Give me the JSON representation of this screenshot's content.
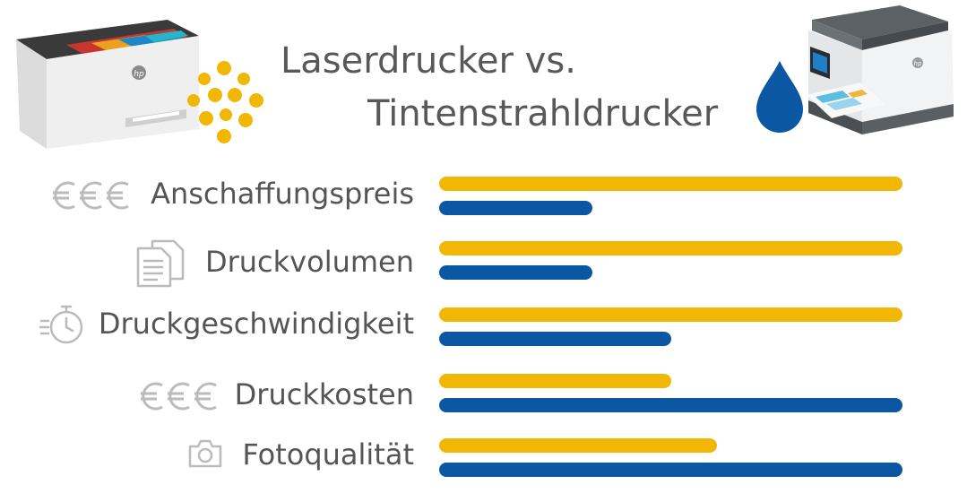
{
  "title_line_1": "Laserdrucker vs.",
  "title_line_2": "Tintenstrahldrucker",
  "printers": {
    "laser": {
      "brand": "hp"
    },
    "inkjet": {
      "brand": "hp"
    }
  },
  "colors": {
    "laser": "#F2B705",
    "inkjet": "#0B57A4",
    "text": "#555555",
    "icon": "#BBBBBB"
  },
  "chart_data": {
    "type": "bar",
    "orientation": "horizontal",
    "title": "Laserdrucker vs. Tintenstrahldrucker",
    "categories": [
      "Anschaffungspreis",
      "Druckvolumen",
      "Druckgeschwindigkeit",
      "Druckkosten",
      "Fotoqualität"
    ],
    "category_icons": [
      "euro-icon",
      "documents-icon",
      "stopwatch-icon",
      "euro-icon",
      "camera-icon"
    ],
    "series": [
      {
        "color": "#F2B705",
        "icon": "toner-dots-icon",
        "values": [
          100,
          100,
          100,
          50,
          60
        ]
      },
      {
        "color": "#0B57A4",
        "icon": "ink-drop-icon",
        "values": [
          33,
          33,
          50,
          100,
          100
        ]
      }
    ],
    "xlim": [
      0,
      100
    ],
    "grid": false,
    "axes_visible": false
  }
}
